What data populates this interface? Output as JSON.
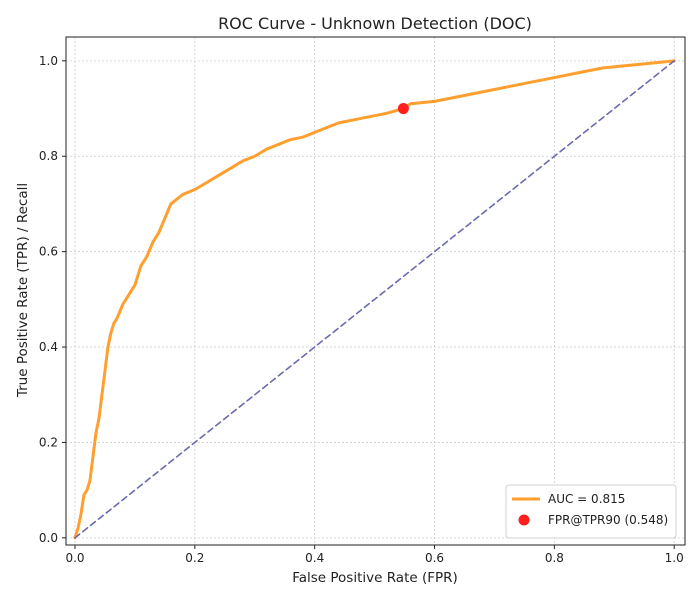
{
  "chart_data": {
    "type": "line",
    "title": "ROC Curve - Unknown Detection (DOC)",
    "xlabel": "False Positive Rate (FPR)",
    "ylabel": "True Positive Rate (TPR) / Recall",
    "xlim": [
      -0.015,
      1.018
    ],
    "ylim": [
      -0.015,
      1.05
    ],
    "xticks": [
      0.0,
      0.2,
      0.4,
      0.6,
      0.8,
      1.0
    ],
    "yticks": [
      0.0,
      0.2,
      0.4,
      0.6,
      0.8,
      1.0
    ],
    "xtick_labels": [
      "0.0",
      "0.2",
      "0.4",
      "0.6",
      "0.8",
      "1.0"
    ],
    "ytick_labels": [
      "0.0",
      "0.2",
      "0.4",
      "0.6",
      "0.8",
      "1.0"
    ],
    "grid": true,
    "legend_position": "bottom-right",
    "series": [
      {
        "name": "AUC = 0.815",
        "color": "#ff9f2f",
        "style": "solid",
        "x": [
          0.0,
          0.005,
          0.01,
          0.015,
          0.02,
          0.025,
          0.03,
          0.035,
          0.04,
          0.045,
          0.05,
          0.055,
          0.06,
          0.065,
          0.07,
          0.08,
          0.09,
          0.1,
          0.11,
          0.12,
          0.13,
          0.14,
          0.15,
          0.16,
          0.17,
          0.18,
          0.2,
          0.22,
          0.24,
          0.26,
          0.28,
          0.3,
          0.32,
          0.34,
          0.36,
          0.38,
          0.4,
          0.42,
          0.44,
          0.46,
          0.48,
          0.5,
          0.52,
          0.548,
          0.56,
          0.6,
          0.64,
          0.68,
          0.72,
          0.76,
          0.8,
          0.84,
          0.88,
          0.92,
          0.96,
          1.0
        ],
        "y": [
          0.0,
          0.02,
          0.05,
          0.09,
          0.1,
          0.12,
          0.17,
          0.22,
          0.25,
          0.3,
          0.35,
          0.4,
          0.43,
          0.45,
          0.46,
          0.49,
          0.51,
          0.53,
          0.57,
          0.59,
          0.62,
          0.64,
          0.67,
          0.7,
          0.71,
          0.72,
          0.73,
          0.745,
          0.76,
          0.775,
          0.79,
          0.8,
          0.815,
          0.825,
          0.835,
          0.84,
          0.85,
          0.86,
          0.87,
          0.875,
          0.88,
          0.885,
          0.89,
          0.9,
          0.91,
          0.915,
          0.925,
          0.935,
          0.945,
          0.955,
          0.965,
          0.975,
          0.985,
          0.99,
          0.995,
          1.0
        ]
      },
      {
        "name": "",
        "color": "#6a6ab0",
        "style": "dashed",
        "x": [
          0.0,
          1.0
        ],
        "y": [
          0.0,
          1.0
        ]
      }
    ],
    "points": [
      {
        "name": "FPR@TPR90 (0.548)",
        "color": "#ff1f1f",
        "x": 0.548,
        "y": 0.9
      }
    ]
  }
}
